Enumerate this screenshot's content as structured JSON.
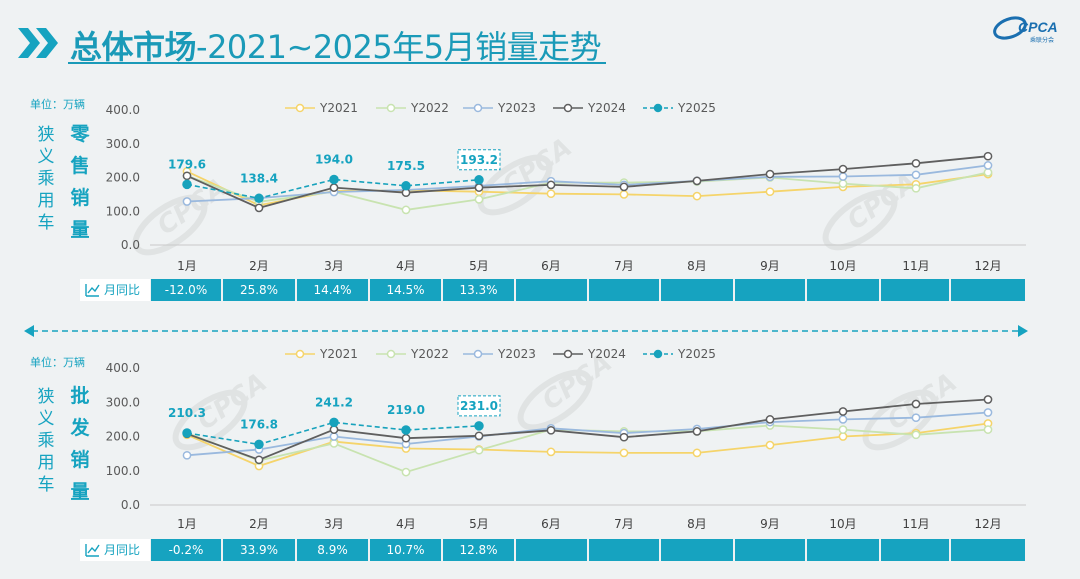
{
  "header": {
    "title_bold": "总体市场",
    "title_rest": "-2021~2025年5月销量走势",
    "logo_text": "CPCA",
    "logo_cn": "乘联分会"
  },
  "colors": {
    "Y2021": "#f5d46a",
    "Y2022": "#c8e3b0",
    "Y2023": "#9ab9de",
    "Y2024": "#5f5f5f",
    "Y2025": "#17a2bc",
    "band": "#16a3c0",
    "text": "#16a3c0"
  },
  "divider_arrow": "double-arrow",
  "chart_data": [
    {
      "type": "line",
      "unit_label": "单位：万辆",
      "side_label_left": "狭义乘用车",
      "side_label_right": "零售销量",
      "categories": [
        "1月",
        "2月",
        "3月",
        "4月",
        "5月",
        "6月",
        "7月",
        "8月",
        "9月",
        "10月",
        "11月",
        "12月"
      ],
      "ylim": [
        0,
        400
      ],
      "yticks": [
        "0.0",
        "100.0",
        "200.0",
        "300.0",
        "400.0"
      ],
      "legend_position": "top",
      "series": [
        {
          "name": "Y2021",
          "values": [
            218,
            118,
            160,
            162,
            158,
            152,
            150,
            145,
            158,
            172,
            180,
            210
          ]
        },
        {
          "name": "Y2022",
          "values": [
            205,
            128,
            158,
            104,
            135,
            185,
            185,
            188,
            200,
            182,
            168,
            215
          ]
        },
        {
          "name": "Y2023",
          "values": [
            129,
            139,
            157,
            163,
            175,
            189,
            178,
            190,
            202,
            203,
            208,
            236
          ]
        },
        {
          "name": "Y2024",
          "values": [
            205,
            110,
            170,
            155,
            170,
            178,
            172,
            190,
            210,
            225,
            242,
            263
          ]
        },
        {
          "name": "Y2025",
          "values": [
            179.6,
            138.4,
            194.0,
            175.5,
            193.2,
            null,
            null,
            null,
            null,
            null,
            null,
            null
          ]
        }
      ],
      "data_labels": [
        "179.6",
        "138.4",
        "194.0",
        "175.5",
        "193.2"
      ],
      "highlight_label_index": 4,
      "yoy_label": "月同比",
      "yoy_values": [
        "-12.0%",
        "25.8%",
        "14.4%",
        "14.5%",
        "13.3%",
        "",
        "",
        "",
        "",
        "",
        "",
        ""
      ]
    },
    {
      "type": "line",
      "unit_label": "单位：万辆",
      "side_label_left": "狭义乘用车",
      "side_label_right": "批发销量",
      "categories": [
        "1月",
        "2月",
        "3月",
        "4月",
        "5月",
        "6月",
        "7月",
        "8月",
        "9月",
        "10月",
        "11月",
        "12月"
      ],
      "ylim": [
        0,
        400
      ],
      "yticks": [
        "0.0",
        "100.0",
        "200.0",
        "300.0",
        "400.0"
      ],
      "legend_position": "top",
      "series": [
        {
          "name": "Y2021",
          "values": [
            205,
            114,
            185,
            165,
            162,
            155,
            152,
            152,
            175,
            200,
            210,
            238
          ]
        },
        {
          "name": "Y2022",
          "values": [
            210,
            130,
            180,
            96,
            160,
            220,
            215,
            215,
            232,
            220,
            205,
            220
          ]
        },
        {
          "name": "Y2023",
          "values": [
            145,
            162,
            200,
            178,
            200,
            224,
            210,
            222,
            242,
            250,
            255,
            270
          ]
        },
        {
          "name": "Y2024",
          "values": [
            208,
            132,
            220,
            195,
            202,
            218,
            198,
            215,
            250,
            273,
            295,
            308
          ]
        },
        {
          "name": "Y2025",
          "values": [
            210.3,
            176.8,
            241.2,
            219.0,
            231.0,
            null,
            null,
            null,
            null,
            null,
            null,
            null
          ]
        }
      ],
      "data_labels": [
        "210.3",
        "176.8",
        "241.2",
        "219.0",
        "231.0"
      ],
      "highlight_label_index": 4,
      "yoy_label": "月同比",
      "yoy_values": [
        "-0.2%",
        "33.9%",
        "8.9%",
        "10.7%",
        "12.8%",
        "",
        "",
        "",
        "",
        "",
        "",
        ""
      ]
    }
  ]
}
